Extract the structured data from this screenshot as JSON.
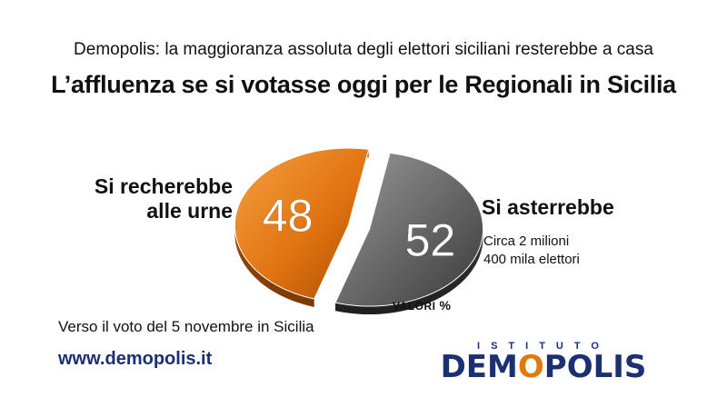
{
  "header": {
    "subtitle": "Demopolis: la maggioranza assoluta degli elettori siciliani resterebbe a casa",
    "title": "L’affluenza se si votasse oggi per le Regionali in Sicilia"
  },
  "chart_data": {
    "type": "pie",
    "title": "L’affluenza se si votasse oggi per le Regionali in Sicilia",
    "unit": "%",
    "slices": [
      {
        "label": "Si recherebbe alle urne",
        "value": 48,
        "color": "#e07a10"
      },
      {
        "label": "Si asterrebbe",
        "value": 52,
        "color": "#6e6e6e"
      }
    ]
  },
  "labels": {
    "left_line1": "Si recherebbe",
    "left_line2": "alle urne",
    "right": "Si asterrebbe",
    "note_line1": "Circa 2 milioni",
    "note_line2": "400 mila elettori",
    "valori": "VALORI",
    "valori_unit": "%"
  },
  "footer": {
    "note": "Verso il voto del 5 novembre in Sicilia",
    "url": "www.demopolis.it",
    "logo_top": "ISTITUTO",
    "logo_main_a": "DEM",
    "logo_main_o": "O",
    "logo_main_b": "POLIS"
  }
}
